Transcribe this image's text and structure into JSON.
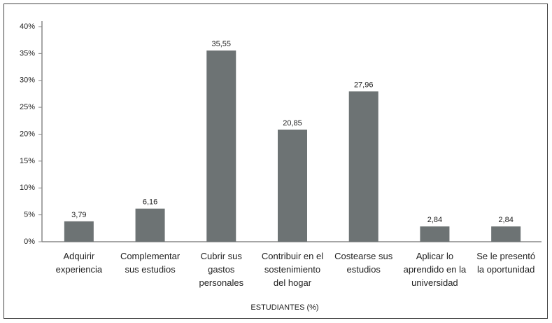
{
  "chart_data": {
    "type": "bar",
    "categories": [
      "Adquirir\nexperiencia",
      "Complementar\nsus estudios",
      "Cubrir sus\ngastos\npersonales",
      "Contribuir en el\nsostenimiento\ndel hogar",
      "Costearse sus\nestudios",
      "Aplicar lo\naprendido en la\nuniversidad",
      "Se le presentó\nla oportunidad"
    ],
    "values": [
      3.79,
      6.16,
      35.55,
      20.85,
      27.96,
      2.84,
      2.84
    ],
    "value_labels": [
      "3,79",
      "6,16",
      "35,55",
      "20,85",
      "27,96",
      "2,84",
      "2,84"
    ],
    "color": "#6d7374",
    "xlabel": "ESTUDIANTES (%)",
    "ylim": [
      0,
      40
    ],
    "yticks": [
      {
        "value": 0,
        "label": "0%"
      },
      {
        "value": 5,
        "label": "5%"
      },
      {
        "value": 10,
        "label": "10%"
      },
      {
        "value": 15,
        "label": "15%"
      },
      {
        "value": 20,
        "label": "20%"
      },
      {
        "value": 25,
        "label": "25%"
      },
      {
        "value": 30,
        "label": "30%"
      },
      {
        "value": 35,
        "label": "35%"
      },
      {
        "value": 40,
        "label": "40%"
      }
    ],
    "grid": false
  }
}
